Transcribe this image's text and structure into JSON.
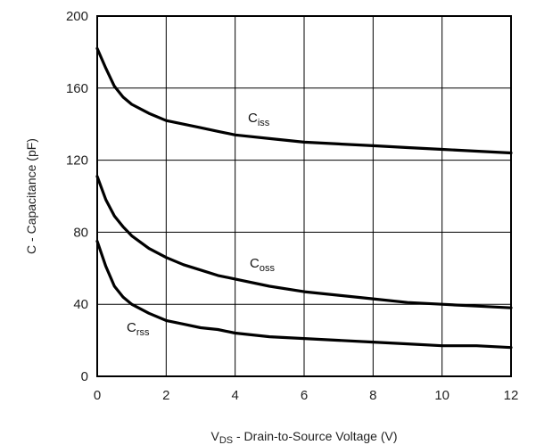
{
  "chart_data": {
    "type": "line",
    "xlabel": {
      "main": "V",
      "sub": "DS",
      "rest": " - Drain-to-Source Voltage (V)"
    },
    "ylabel": "C - Capacitance (pF)",
    "xlim": [
      0,
      12
    ],
    "ylim": [
      0,
      200
    ],
    "x_ticks": [
      0,
      2,
      4,
      6,
      8,
      10,
      12
    ],
    "y_ticks": [
      0,
      40,
      80,
      120,
      160,
      200
    ],
    "grid": true,
    "series": [
      {
        "name": {
          "main": "C",
          "sub": "iss"
        },
        "x": [
          0,
          0.25,
          0.5,
          0.75,
          1,
          1.5,
          2,
          2.5,
          3,
          3.5,
          4,
          5,
          6,
          7,
          8,
          9,
          10,
          11,
          12
        ],
        "values": [
          182,
          171,
          161,
          155,
          151,
          146,
          142,
          140,
          138,
          136,
          134,
          132,
          130,
          129,
          128,
          127,
          126,
          125,
          124
        ]
      },
      {
        "name": {
          "main": "C",
          "sub": "oss"
        },
        "x": [
          0,
          0.25,
          0.5,
          0.75,
          1,
          1.5,
          2,
          2.5,
          3,
          3.5,
          4,
          5,
          6,
          7,
          8,
          9,
          10,
          11,
          12
        ],
        "values": [
          111,
          98,
          89,
          83,
          78,
          71,
          66,
          62,
          59,
          56,
          54,
          50,
          47,
          45,
          43,
          41,
          40,
          39,
          38
        ]
      },
      {
        "name": {
          "main": "C",
          "sub": "rss"
        },
        "x": [
          0,
          0.25,
          0.5,
          0.75,
          1,
          1.5,
          2,
          2.5,
          3,
          3.5,
          4,
          5,
          6,
          7,
          8,
          9,
          10,
          11,
          12
        ],
        "values": [
          75,
          61,
          50,
          44,
          40,
          35,
          31,
          29,
          27,
          26,
          24,
          22,
          21,
          20,
          19,
          18,
          17,
          17,
          16
        ]
      }
    ]
  }
}
